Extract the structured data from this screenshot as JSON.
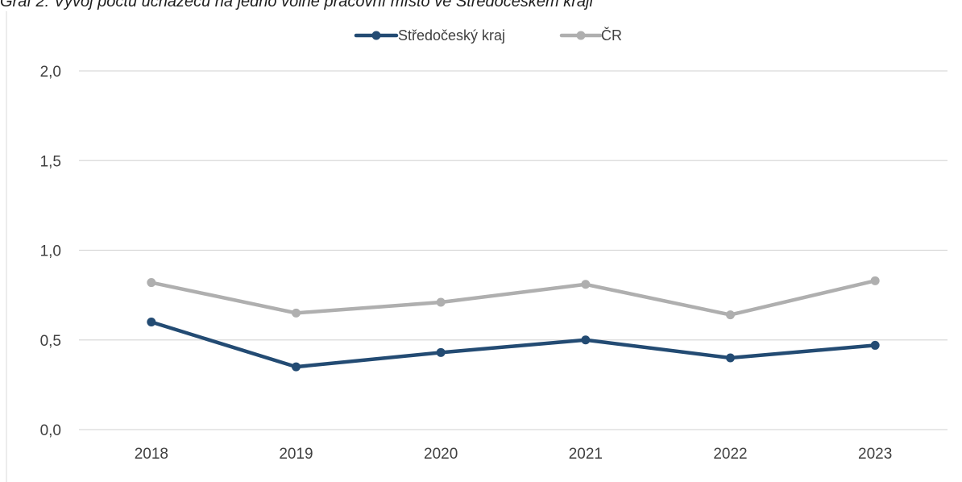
{
  "caption": "Graf 2: Vývoj počtu uchazečů na jedno volné pracovní místo ve Středočeském kraji",
  "chart_data": {
    "type": "line",
    "title": "",
    "xlabel": "",
    "ylabel": "",
    "categories": [
      "2018",
      "2019",
      "2020",
      "2021",
      "2022",
      "2023"
    ],
    "y_ticks": [
      "0,0",
      "0,5",
      "1,0",
      "1,5",
      "2,0"
    ],
    "ylim": [
      0,
      2.0
    ],
    "grid": true,
    "legend": "top-center",
    "series": [
      {
        "name": "Středočeský kraj",
        "color": "#234b73",
        "values": [
          0.6,
          0.35,
          0.43,
          0.5,
          0.4,
          0.47
        ]
      },
      {
        "name": "ČR",
        "color": "#afafaf",
        "values": [
          0.82,
          0.65,
          0.71,
          0.81,
          0.64,
          0.83
        ]
      }
    ]
  }
}
